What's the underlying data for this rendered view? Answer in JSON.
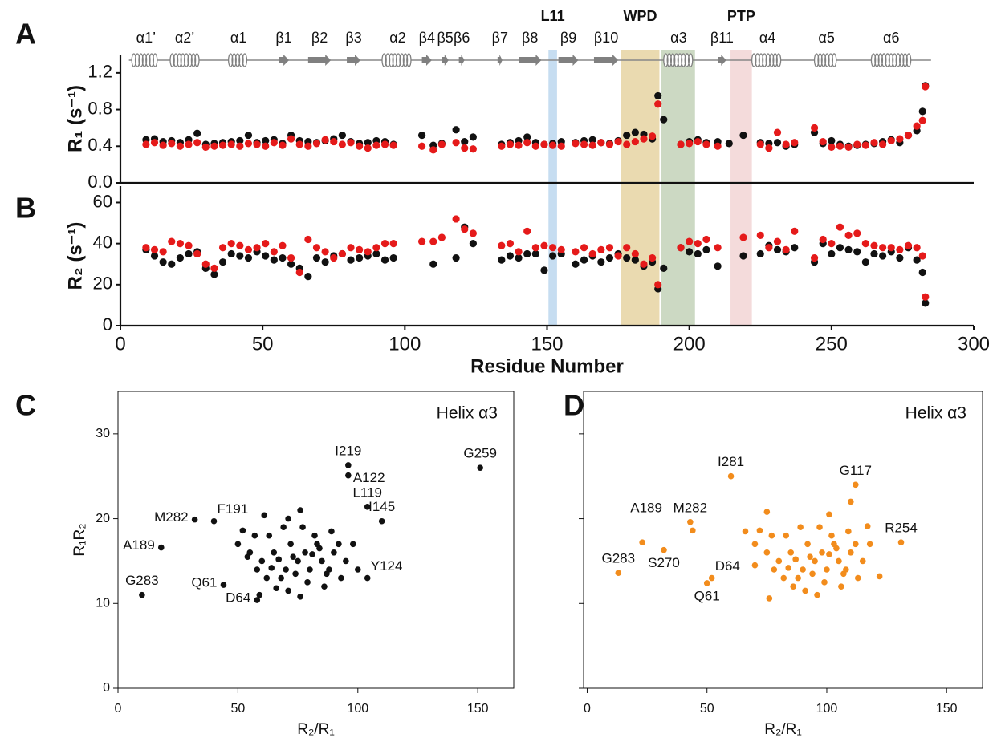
{
  "chart_data": [
    {
      "panel": "A",
      "type": "scatter",
      "ylabel": "R₁ (s⁻¹)",
      "xlim": [
        0,
        300
      ],
      "ylim": [
        0,
        1.4
      ],
      "yticks": [
        {
          "value": 0,
          "label": "0.0"
        },
        0.4,
        0.8,
        1.2
      ],
      "x": [
        9,
        12,
        15,
        18,
        21,
        24,
        27,
        30,
        33,
        36,
        39,
        42,
        45,
        48,
        51,
        54,
        57,
        60,
        63,
        66,
        69,
        72,
        75,
        78,
        81,
        84,
        87,
        90,
        93,
        96,
        106,
        110,
        113,
        118,
        121,
        124,
        134,
        137,
        140,
        143,
        146,
        149,
        152,
        155,
        160,
        163,
        166,
        169,
        172,
        175,
        178,
        181,
        184,
        187,
        189,
        191,
        197,
        200,
        203,
        206,
        210,
        214,
        219,
        225,
        228,
        231,
        234,
        237,
        244,
        247,
        250,
        253,
        256,
        259,
        262,
        265,
        268,
        271,
        274,
        277,
        280,
        282,
        283
      ],
      "series": [
        {
          "color": "#111111",
          "values": [
            0.47,
            0.48,
            0.45,
            0.46,
            0.44,
            0.47,
            0.54,
            0.42,
            0.43,
            0.44,
            0.45,
            0.46,
            0.52,
            0.44,
            0.46,
            0.47,
            0.43,
            0.52,
            0.46,
            0.45,
            0.44,
            0.46,
            0.48,
            0.52,
            0.45,
            0.43,
            0.44,
            0.46,
            0.45,
            0.42,
            0.52,
            0.41,
            0.43,
            0.58,
            0.45,
            0.5,
            0.42,
            0.44,
            0.46,
            0.5,
            0.44,
            0.42,
            0.43,
            0.45,
            0.44,
            0.46,
            0.47,
            0.44,
            0.43,
            0.46,
            0.52,
            0.55,
            0.53,
            0.48,
            0.95,
            0.69,
            0.42,
            0.45,
            0.47,
            0.44,
            0.45,
            0.43,
            0.52,
            0.44,
            0.43,
            0.44,
            0.4,
            0.42,
            0.55,
            0.43,
            0.46,
            0.42,
            0.4,
            0.41,
            0.42,
            0.43,
            0.45,
            0.47,
            0.44,
            0.52,
            0.57,
            0.78,
            1.06
          ]
        },
        {
          "color": "#e51a1a",
          "values": [
            0.42,
            0.44,
            0.41,
            0.43,
            0.4,
            0.42,
            0.44,
            0.39,
            0.4,
            0.41,
            0.42,
            0.4,
            0.43,
            0.42,
            0.4,
            0.44,
            0.41,
            0.48,
            0.42,
            0.4,
            0.43,
            0.47,
            0.45,
            0.42,
            0.44,
            0.4,
            0.38,
            0.41,
            0.42,
            0.41,
            0.4,
            0.36,
            0.42,
            0.44,
            0.38,
            0.37,
            0.4,
            0.42,
            0.41,
            0.44,
            0.4,
            0.42,
            0.41,
            0.4,
            0.43,
            0.42,
            0.41,
            0.44,
            0.42,
            0.45,
            0.42,
            0.45,
            0.48,
            0.51,
            0.86,
            null,
            0.42,
            0.43,
            0.45,
            0.42,
            0.4,
            null,
            null,
            0.42,
            0.38,
            0.55,
            0.42,
            0.44,
            0.6,
            0.45,
            0.39,
            0.4,
            0.39,
            0.42,
            0.41,
            0.44,
            0.42,
            0.46,
            0.48,
            0.52,
            0.62,
            0.68,
            1.05
          ]
        }
      ],
      "secondary_structure": [
        {
          "label": "α1’",
          "kind": "helix",
          "start": 4,
          "end": 14
        },
        {
          "label": "α2’",
          "kind": "helix",
          "start": 17.5,
          "end": 27.7
        },
        {
          "label": "α1",
          "kind": "helix",
          "start": 38,
          "end": 45
        },
        {
          "label": "β1",
          "kind": "strand",
          "start": 55.6,
          "end": 59.3
        },
        {
          "label": "β2",
          "kind": "strand",
          "start": 66,
          "end": 74
        },
        {
          "label": "β3",
          "kind": "strand",
          "start": 79.6,
          "end": 84.4
        },
        {
          "label": "α2",
          "kind": "helix",
          "start": 92,
          "end": 103
        },
        {
          "label": "β4",
          "kind": "strand",
          "start": 106,
          "end": 109.5
        },
        {
          "label": "β5",
          "kind": "strand",
          "start": 113,
          "end": 115.4
        },
        {
          "label": "β6",
          "kind": "strand",
          "start": 119,
          "end": 121
        },
        {
          "label": "β7",
          "kind": "strand",
          "start": 132.6,
          "end": 134.3
        },
        {
          "label": "β8",
          "kind": "strand",
          "start": 140,
          "end": 148
        },
        {
          "label": "β9",
          "kind": "strand",
          "start": 154,
          "end": 161
        },
        {
          "label": "β10",
          "kind": "strand",
          "start": 166.5,
          "end": 175
        },
        {
          "label": "α3",
          "kind": "helix",
          "start": 191,
          "end": 201.5,
          "color": "#1aaa55"
        },
        {
          "label": "β11",
          "kind": "strand",
          "start": 210,
          "end": 213
        },
        {
          "label": "α4",
          "kind": "helix",
          "start": 222,
          "end": 233
        },
        {
          "label": "α5",
          "kind": "helix",
          "start": 244,
          "end": 252.5
        },
        {
          "label": "α6",
          "kind": "helix",
          "start": 264,
          "end": 278
        }
      ],
      "regions": [
        {
          "label": "L11",
          "start": 150.5,
          "end": 153.5,
          "color": "#bcd7ee",
          "label_color": "#4a86c8"
        },
        {
          "label": "WPD",
          "start": 176,
          "end": 189.5,
          "color": "#e6d3a2",
          "label_color": "#7a5a10"
        },
        {
          "start": 190,
          "end": 202,
          "color": "#c3d2b8"
        },
        {
          "label": "PTP",
          "start": 214.5,
          "end": 222,
          "color": "#f2d5d5",
          "label_color": "#e51a1a"
        }
      ]
    },
    {
      "panel": "B",
      "type": "scatter",
      "ylabel": "R₂ (s⁻¹)",
      "xlabel": "Residue Number",
      "xlim": [
        0,
        300
      ],
      "ylim": [
        0,
        68
      ],
      "xticks": [
        0,
        50,
        100,
        150,
        200,
        250,
        300
      ],
      "yticks": [
        0,
        20,
        40,
        60
      ],
      "x": [
        9,
        12,
        15,
        18,
        21,
        24,
        27,
        30,
        33,
        36,
        39,
        42,
        45,
        48,
        51,
        54,
        57,
        60,
        63,
        66,
        69,
        72,
        75,
        78,
        81,
        84,
        87,
        90,
        93,
        96,
        106,
        110,
        113,
        118,
        121,
        124,
        134,
        137,
        140,
        143,
        146,
        149,
        152,
        155,
        160,
        163,
        166,
        169,
        172,
        175,
        178,
        181,
        184,
        187,
        189,
        191,
        197,
        200,
        203,
        206,
        210,
        214,
        219,
        225,
        228,
        231,
        234,
        237,
        244,
        247,
        250,
        253,
        256,
        259,
        262,
        265,
        268,
        271,
        274,
        277,
        280,
        282,
        283
      ],
      "series": [
        {
          "color": "#111111",
          "values": [
            37,
            34,
            31,
            30,
            33,
            35,
            36,
            28,
            25,
            31,
            35,
            34,
            33,
            36,
            34,
            32,
            33,
            30,
            28,
            24,
            33,
            31,
            34,
            35,
            32,
            33,
            34,
            35,
            32,
            33,
            null,
            30,
            null,
            33,
            48,
            40,
            32,
            34,
            33,
            35,
            35,
            27,
            34,
            35,
            30,
            32,
            34,
            31,
            33,
            35,
            33,
            32,
            29,
            31,
            18,
            28,
            38,
            36,
            35,
            37,
            29,
            null,
            34,
            35,
            39,
            37,
            36,
            38,
            31,
            40,
            35,
            38,
            37,
            36,
            31,
            35,
            34,
            36,
            33,
            38,
            32,
            26,
            11
          ]
        },
        {
          "color": "#e51a1a",
          "values": [
            38,
            37,
            36,
            41,
            40,
            39,
            35,
            30,
            28,
            38,
            40,
            39,
            37,
            38,
            40,
            36,
            39,
            33,
            26,
            42,
            38,
            36,
            33,
            35,
            38,
            37,
            36,
            38,
            40,
            40,
            41,
            41,
            43,
            52,
            47,
            45,
            39,
            40,
            36,
            46,
            38,
            39,
            38,
            37,
            36,
            38,
            35,
            37,
            38,
            34,
            38,
            35,
            30,
            33,
            20,
            null,
            38,
            41,
            40,
            42,
            38,
            null,
            43,
            44,
            38,
            41,
            37,
            46,
            33,
            42,
            40,
            48,
            44,
            45,
            40,
            39,
            38,
            38,
            37,
            39,
            38,
            34,
            14
          ]
        }
      ]
    },
    {
      "panel": "C",
      "type": "scatter",
      "annotation": "Helix α3",
      "annotation_color": "#1aaa55",
      "xlabel": "R₂/R₁",
      "ylabel": "R₁R₂",
      "xlim": [
        0,
        165
      ],
      "ylim": [
        0,
        35
      ],
      "xticks": [
        0,
        50,
        100,
        150
      ],
      "yticks": [
        0,
        10,
        20,
        30
      ],
      "series": [
        {
          "color": "#111111",
          "x": [
            60,
            65,
            70,
            72,
            75,
            78,
            80,
            82,
            85,
            68,
            74,
            77,
            63,
            58,
            55,
            50,
            88,
            90,
            92,
            86,
            79,
            71,
            66,
            62,
            69,
            76,
            83,
            95,
            98,
            100,
            52,
            57,
            73,
            81,
            67,
            84,
            61,
            71,
            93,
            89,
            54,
            59,
            76,
            87,
            64
          ],
          "values": [
            15,
            16,
            14,
            17,
            15,
            16,
            14,
            18,
            15,
            13,
            13.5,
            19,
            18,
            14,
            16,
            17,
            14,
            16,
            17,
            12,
            12.5,
            11.5,
            11.8,
            13,
            19,
            21,
            17,
            15,
            17,
            14,
            18.6,
            18,
            15.5,
            15.8,
            15.2,
            16.5,
            20.4,
            20,
            13,
            18.5,
            15.5,
            11,
            10.8,
            13.5,
            14.2
          ]
        }
      ],
      "labeled_points": [
        {
          "label": "I219",
          "x": 96,
          "y": 26.3,
          "anchor": "n",
          "color": "#111111"
        },
        {
          "label": "A122",
          "x": 96,
          "y": 25.1,
          "anchor": "e",
          "color": "#111111"
        },
        {
          "label": "G259",
          "x": 151,
          "y": 26,
          "anchor": "n",
          "color": "#111111"
        },
        {
          "label": "L119",
          "x": 104,
          "y": 21.4,
          "anchor": "n",
          "color": "#111111"
        },
        {
          "label": "I145",
          "x": 110,
          "y": 19.7,
          "anchor": "n",
          "color": "#111111"
        },
        {
          "label": "M282",
          "x": 32,
          "y": 19.9,
          "anchor": "w",
          "color": "#111111"
        },
        {
          "label": "F191",
          "x": 40,
          "y": 19.7,
          "anchor": "ne",
          "color": "#1aaa55"
        },
        {
          "label": "A189",
          "x": 18,
          "y": 16.6,
          "anchor": "w",
          "color": "#1aaa55"
        },
        {
          "label": "Y124",
          "x": 104,
          "y": 13,
          "anchor": "ne",
          "color": "#111111"
        },
        {
          "label": "Q61",
          "x": 44,
          "y": 12.2,
          "anchor": "w",
          "color": "#111111"
        },
        {
          "label": "D64",
          "x": 58,
          "y": 10.4,
          "anchor": "w",
          "color": "#111111"
        },
        {
          "label": "G283",
          "x": 10,
          "y": 11,
          "anchor": "n",
          "color": "#111111"
        }
      ]
    },
    {
      "panel": "D",
      "type": "scatter",
      "annotation": "Helix α3",
      "annotation_color": "#1aaa55",
      "xlabel": "R₂/R₁",
      "xlim": [
        -1.5,
        165
      ],
      "ylim": [
        0,
        35
      ],
      "xticks": [
        0,
        50,
        100,
        150
      ],
      "yticks": [
        0,
        10,
        20,
        30
      ],
      "ytick_labels": false,
      "series": [
        {
          "color": "#f28c1c",
          "x": [
            80,
            85,
            90,
            92,
            95,
            98,
            100,
            102,
            105,
            88,
            94,
            97,
            83,
            78,
            75,
            70,
            108,
            110,
            112,
            106,
            99,
            91,
            86,
            82,
            89,
            101,
            103,
            115,
            118,
            122,
            72,
            77,
            93,
            101,
            87,
            104,
            75,
            110,
            113,
            109,
            66,
            76,
            96,
            107,
            84,
            44,
            70,
            117
          ],
          "values": [
            15,
            16,
            14,
            17,
            15,
            16,
            14,
            18,
            15,
            13,
            13.5,
            19,
            18,
            14,
            16,
            17,
            14,
            16,
            17,
            12,
            12.5,
            11.5,
            12,
            13,
            19,
            20.5,
            17,
            15,
            17,
            13.2,
            18.6,
            18,
            15.5,
            15.8,
            15.2,
            16.5,
            20.8,
            22,
            13,
            18.5,
            18.5,
            10.6,
            11,
            13.5,
            14.2,
            18.6,
            14.5,
            19.1
          ]
        }
      ],
      "labeled_points": [
        {
          "label": "I281",
          "x": 60,
          "y": 25,
          "anchor": "n",
          "color": "#111111"
        },
        {
          "label": "G117",
          "x": 112,
          "y": 24,
          "anchor": "n",
          "color": "#111111"
        },
        {
          "label": "M282",
          "x": 43,
          "y": 19.6,
          "anchor": "n",
          "color": "#111111"
        },
        {
          "label": "A189",
          "x": 23,
          "y": 17.2,
          "anchor": "nn",
          "color": "#1aaa55"
        },
        {
          "label": "R254",
          "x": 131,
          "y": 17.2,
          "anchor": "n",
          "color": "#111111"
        },
        {
          "label": "G283",
          "x": 13,
          "y": 13.6,
          "anchor": "n",
          "color": "#111111"
        },
        {
          "label": "S270",
          "x": 32,
          "y": 16.3,
          "anchor": "s",
          "color": "#111111"
        },
        {
          "label": "D64",
          "x": 52,
          "y": 13,
          "anchor": "ne",
          "color": "#111111"
        },
        {
          "label": "Q61",
          "x": 50,
          "y": 12.4,
          "anchor": "s",
          "color": "#111111"
        }
      ]
    }
  ]
}
